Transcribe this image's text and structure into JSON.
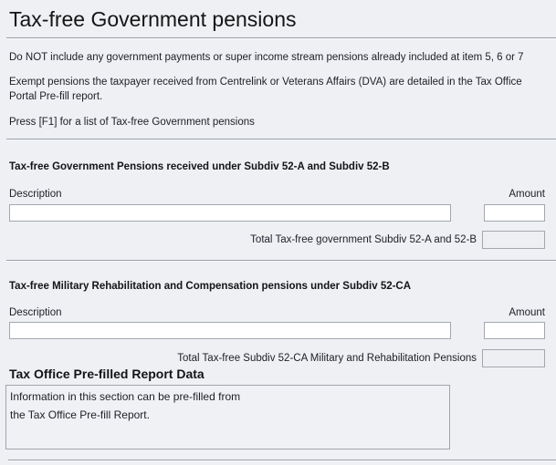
{
  "page": {
    "title": "Tax-free Government pensions",
    "intro": {
      "line1": "Do NOT include any government payments or super income stream pensions already included at item 5, 6 or 7",
      "line2a": "Exempt pensions the taxpayer received from Centrelink or Veterans Affairs (DVA) are detailed in the Tax Office",
      "line2b": "Portal Pre-fill report.",
      "line3": "Press [F1] for a list of Tax-free Government pensions"
    }
  },
  "sections": {
    "subdiv52ab": {
      "heading": "Tax-free Government Pensions received under Subdiv 52-A and Subdiv 52-B",
      "description_label": "Description",
      "amount_label": "Amount",
      "description_value": "",
      "amount_value": "",
      "total_label": "Total Tax-free government Subdiv 52-A and 52-B",
      "total_value": ""
    },
    "subdiv52ca": {
      "heading": "Tax-free Military Rehabilitation and Compensation pensions under Subdiv 52-CA",
      "description_label": "Description",
      "amount_label": "Amount",
      "description_value": "",
      "amount_value": "",
      "total_label": "Total Tax-free Subdiv 52-CA Military and Rehabilitation Pensions",
      "total_value": ""
    },
    "prefill": {
      "heading": "Tax Office Pre-filled Report Data",
      "line1": "Information in this section can be pre-filled from",
      "line2": "the Tax Office Pre-fill Report."
    }
  },
  "colors": {
    "background": "#eef0f4",
    "active_field": "#fcbf6e",
    "field_border": "#a3a7ad",
    "separator": "#9aa0a8"
  }
}
